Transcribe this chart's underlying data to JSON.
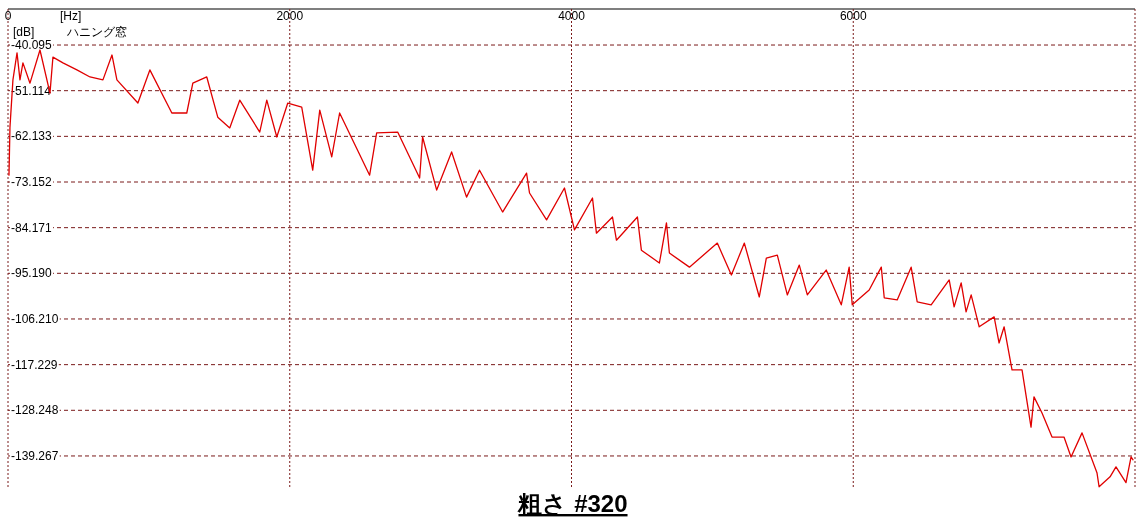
{
  "chart_data": {
    "type": "line",
    "title": "粗さ #320",
    "xlabel": "[Hz]",
    "ylabel": "[dB]",
    "annotations": [
      "ハニング窓"
    ],
    "xlim": [
      0,
      8000
    ],
    "ylim": [
      -147.0,
      -31.4
    ],
    "xticks": [
      0,
      2000,
      4000,
      6000
    ],
    "yticks": [
      -40.095,
      -51.114,
      -62.133,
      -73.152,
      -84.171,
      {
        "value": -95.19,
        "label": "-95.190"
      },
      {
        "value": -106.21,
        "label": "-106.210"
      },
      -117.229,
      -128.248,
      -139.267
    ],
    "grid": true,
    "series": [
      {
        "color": "#e00000",
        "x": [
          7,
          14,
          35,
          64,
          85,
          106,
          156,
          227,
          298,
          319,
          390,
          489,
          582,
          674,
          738,
          773,
          922,
          1007,
          1163,
          1269,
          1312,
          1411,
          1489,
          1574,
          1645,
          1787,
          1837,
          1908,
          1986,
          2085,
          2163,
          2213,
          2298,
          2354,
          2567,
          2617,
          2766,
          2922,
          2943,
          3043,
          3149,
          3255,
          3347,
          3511,
          3681,
          3702,
          3823,
          3950,
          4021,
          4149,
          4177,
          4291,
          4319,
          4468,
          4496,
          4624,
          4674,
          4695,
          4837,
          5035,
          5135,
          5227,
          5333,
          5383,
          5461,
          5532,
          5617,
          5674,
          5808,
          5915,
          5971,
          5993,
          6113,
          6199,
          6220,
          6312,
          6411,
          6454,
          6553,
          6681,
          6716,
          6766,
          6801,
          6837,
          6894,
          7000,
          7035,
          7071,
          7127,
          7198,
          7262,
          7283,
          7340,
          7411,
          7496,
          7546,
          7624,
          7730,
          7745,
          7823,
          7865,
          7936,
          7972,
          7986
        ],
        "values": [
          -71.5,
          -59.9,
          -48.5,
          -42.0,
          -48.5,
          -44.4,
          -49.3,
          -41.3,
          -51.7,
          -43.0,
          -44.4,
          -46.1,
          -47.8,
          -48.5,
          -42.5,
          -48.5,
          -54.1,
          -46.1,
          -56.5,
          -56.5,
          -49.3,
          -47.8,
          -57.5,
          -60.1,
          -53.4,
          -61.1,
          -53.4,
          -62.3,
          -54.1,
          -55.1,
          -70.3,
          -55.8,
          -67.1,
          -56.5,
          -71.5,
          -61.3,
          -61.1,
          -72.2,
          -62.3,
          -75.1,
          -65.9,
          -76.8,
          -70.3,
          -80.4,
          -71.0,
          -75.8,
          -82.3,
          -74.6,
          -84.7,
          -77.0,
          -85.5,
          -81.6,
          -87.2,
          -81.6,
          -89.6,
          -92.7,
          -83.0,
          -90.3,
          -93.7,
          -87.9,
          -95.6,
          -87.9,
          -100.9,
          -91.5,
          -90.8,
          -100.4,
          -93.2,
          -100.4,
          -94.4,
          -102.8,
          -93.7,
          -102.8,
          -99.2,
          -93.7,
          -101.1,
          -101.6,
          -93.7,
          -102.1,
          -102.8,
          -96.8,
          -103.3,
          -97.5,
          -104.5,
          -100.4,
          -108.1,
          -105.7,
          -112.0,
          -108.1,
          -118.5,
          -118.5,
          -132.3,
          -125.0,
          -128.9,
          -134.7,
          -134.7,
          -139.5,
          -133.7,
          -143.3,
          -146.7,
          -144.3,
          -141.9,
          -145.7,
          -139.5,
          -140.2
        ]
      }
    ]
  }
}
